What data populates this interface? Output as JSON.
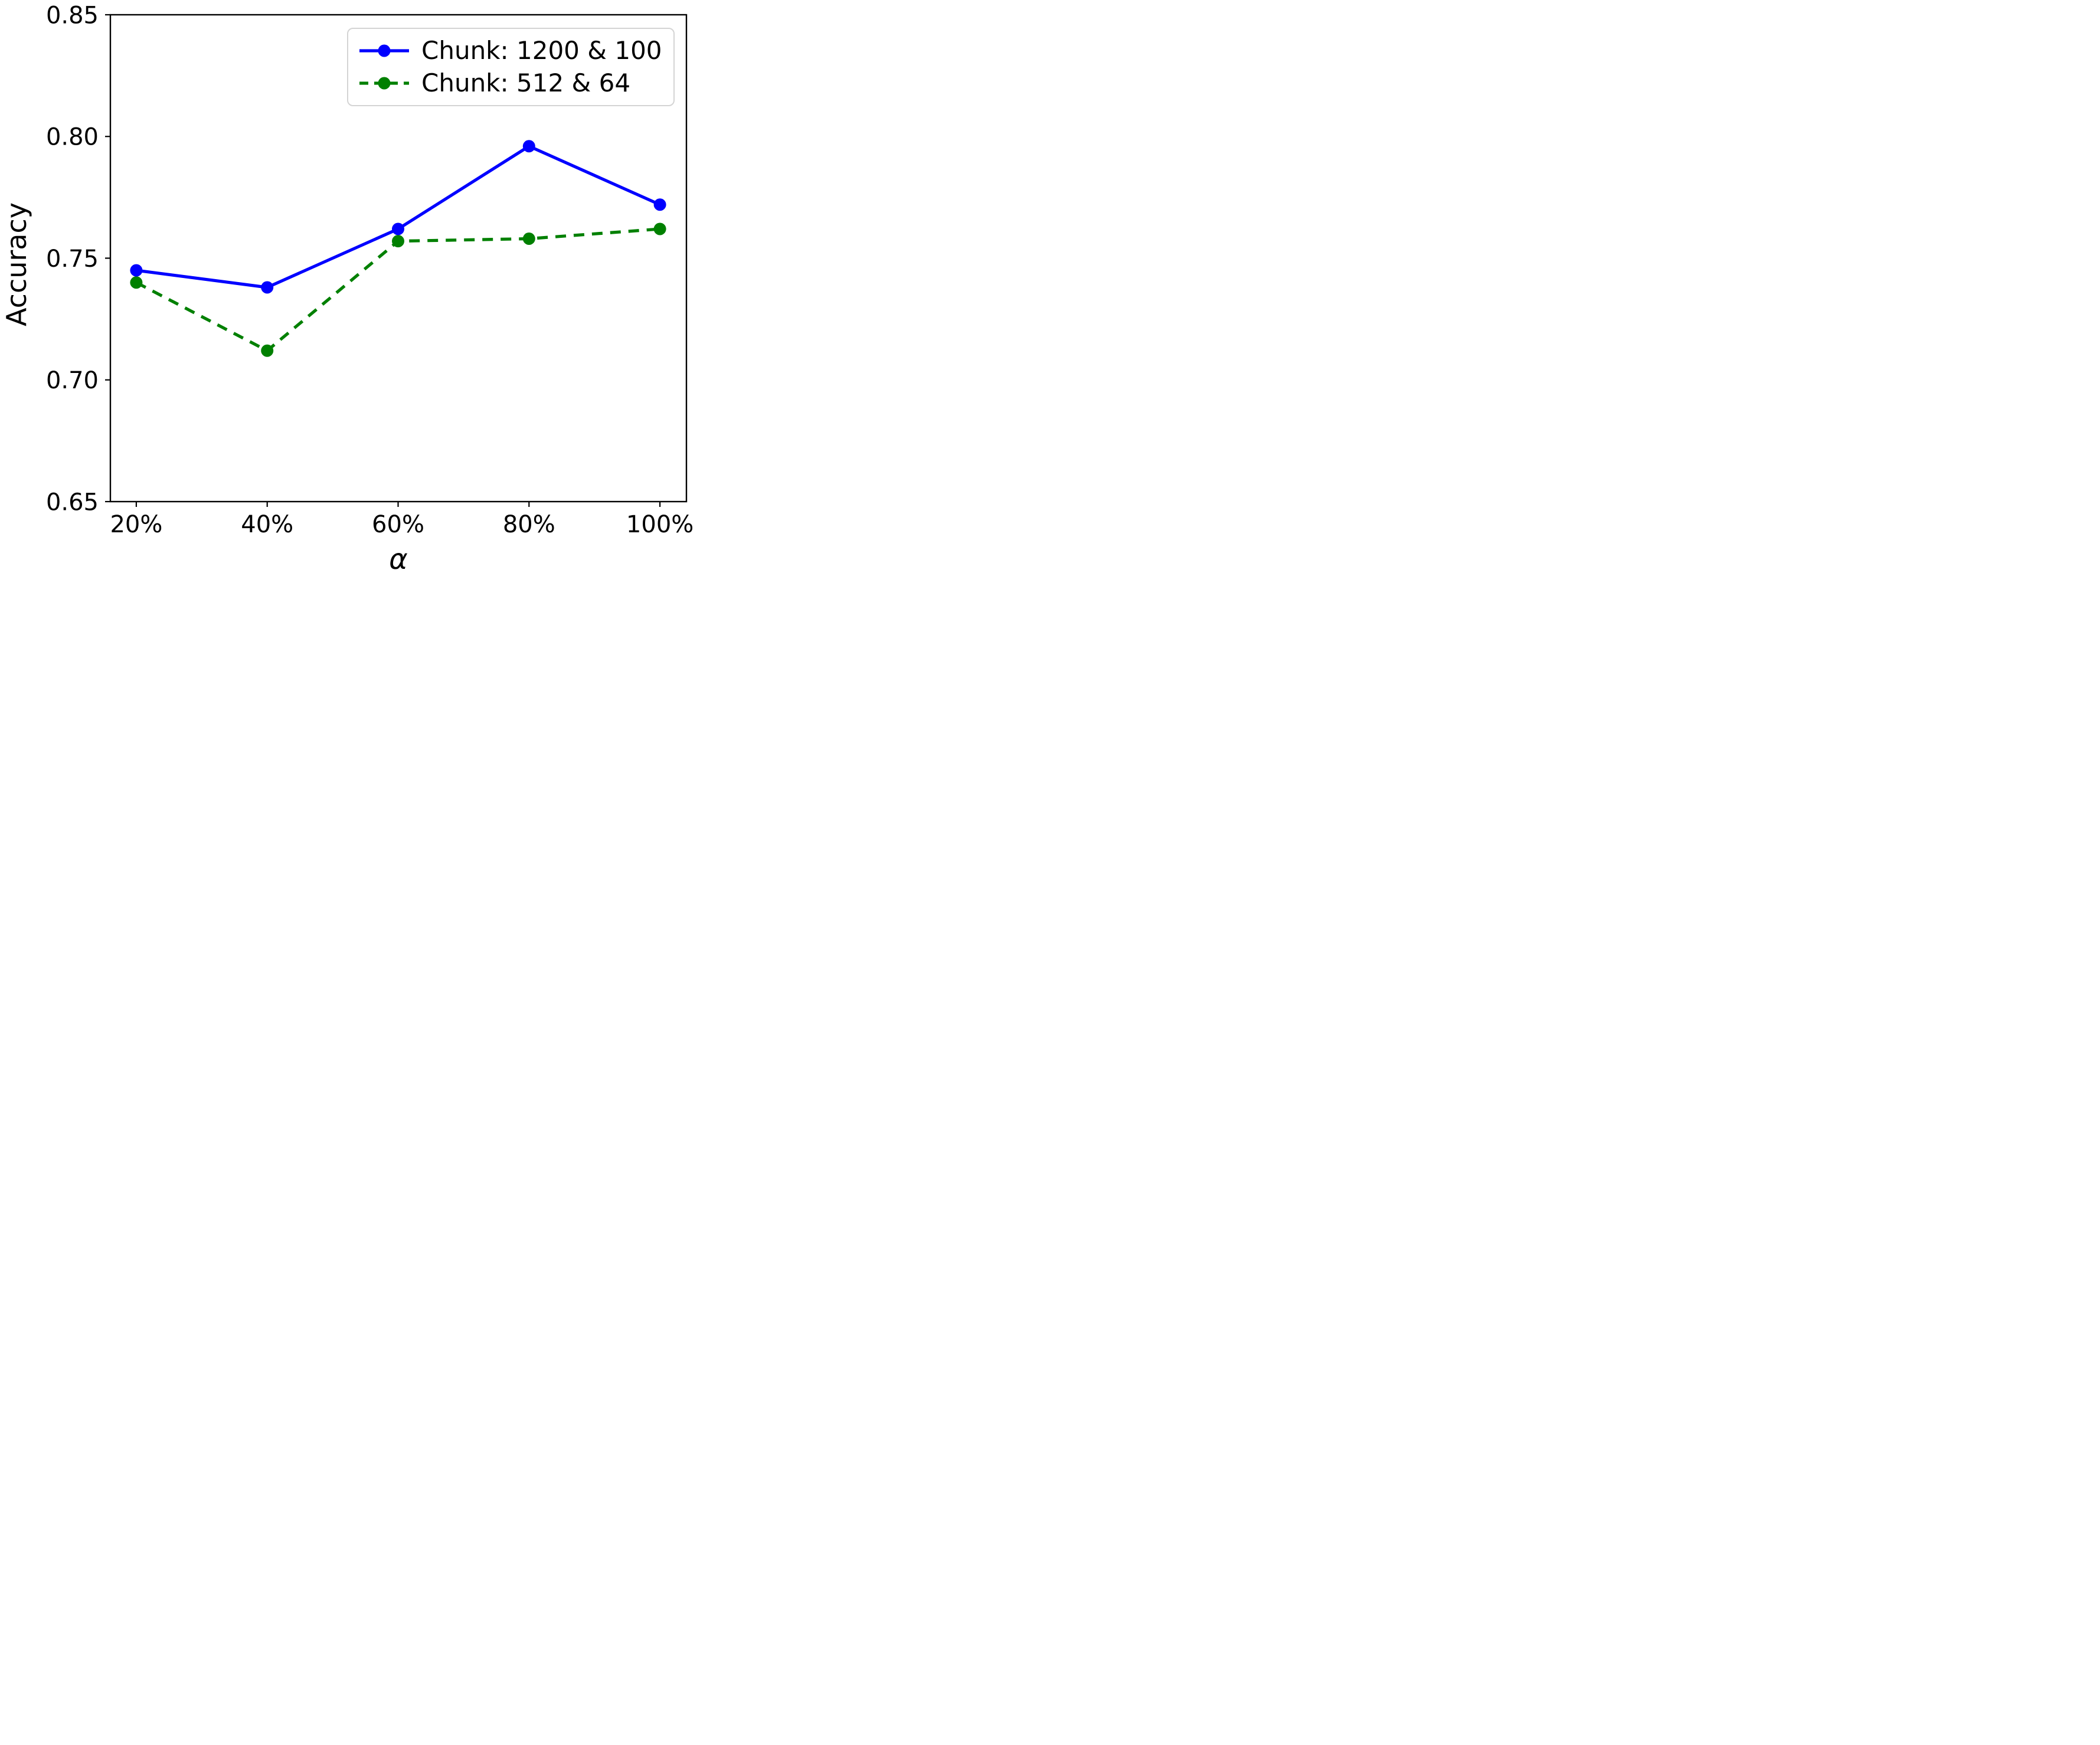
{
  "chart_data": {
    "type": "line",
    "title": "",
    "xlabel": "α",
    "ylabel": "Accuracy",
    "categories": [
      "20%",
      "40%",
      "60%",
      "80%",
      "100%"
    ],
    "y_ticks": [
      0.65,
      0.7,
      0.75,
      0.8,
      0.85
    ],
    "y_tick_labels": [
      "0.65",
      "0.70",
      "0.75",
      "0.80",
      "0.85"
    ],
    "ylim": [
      0.65,
      0.85
    ],
    "grid": false,
    "legend_position": "upper right",
    "series": [
      {
        "name": "Chunk: 1200 & 100",
        "color": "#0000ff",
        "line_style": "solid",
        "marker": "circle",
        "values": [
          0.745,
          0.738,
          0.762,
          0.796,
          0.772
        ]
      },
      {
        "name": "Chunk: 512 & 64",
        "color": "#008000",
        "line_style": "dashed",
        "marker": "circle",
        "values": [
          0.74,
          0.712,
          0.757,
          0.758,
          0.762
        ]
      }
    ]
  }
}
